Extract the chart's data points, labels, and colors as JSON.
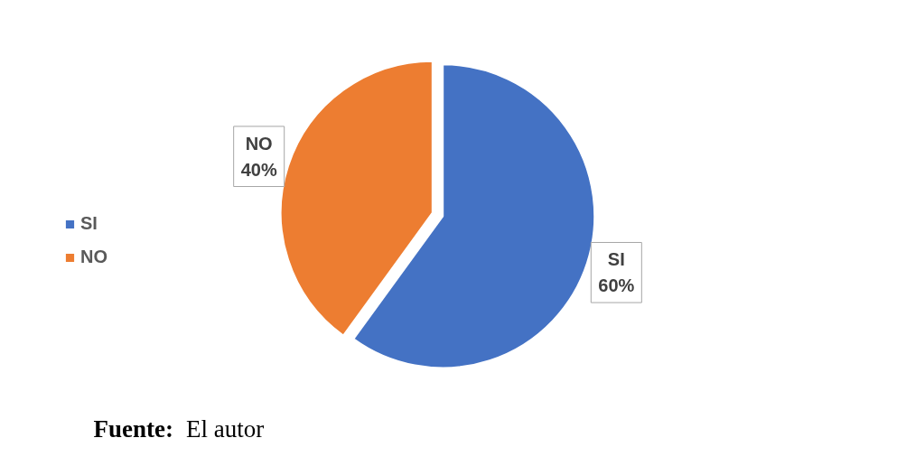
{
  "chart_data": {
    "type": "pie",
    "categories": [
      "SI",
      "NO"
    ],
    "values": [
      60,
      40
    ],
    "colors": [
      "#4472c4",
      "#ed7d31"
    ],
    "value_labels": [
      "60%",
      "40%"
    ],
    "legend": "left",
    "annotations": [
      "Fuente: El autor"
    ]
  }
}
